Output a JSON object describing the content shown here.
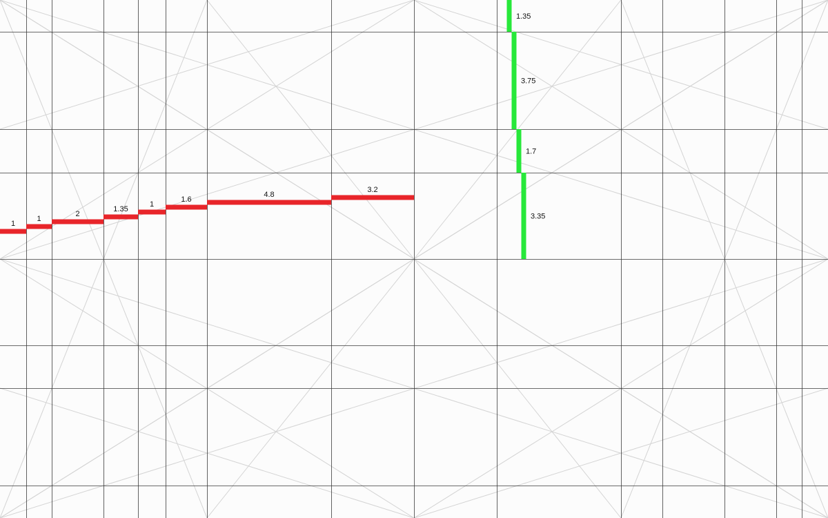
{
  "colors": {
    "background": "#fcfcfc",
    "major_grid": "#3a3a3a",
    "diagonal_grid": "#d4d4d4",
    "horizontal_steps": "#e8252a",
    "vertical_steps": "#27e83a"
  },
  "horizontal_segments": [
    {
      "label": "1"
    },
    {
      "label": "1"
    },
    {
      "label": "2"
    },
    {
      "label": "1.35"
    },
    {
      "label": "1"
    },
    {
      "label": "1.6"
    },
    {
      "label": "4.8"
    },
    {
      "label": "3.2"
    }
  ],
  "vertical_segments": [
    {
      "label": "1.35"
    },
    {
      "label": "3.75"
    },
    {
      "label": "1.7"
    },
    {
      "label": "3.35"
    }
  ]
}
